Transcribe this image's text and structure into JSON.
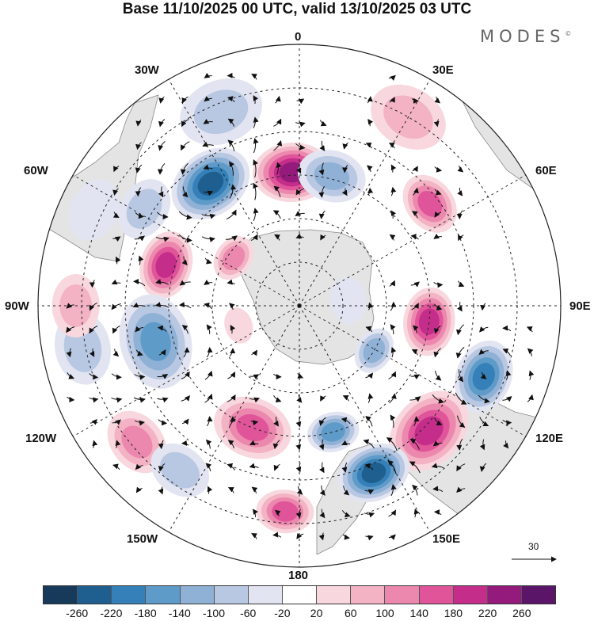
{
  "title": "Base 11/10/2025 00 UTC, valid 13/10/2025 03 UTC",
  "brand": "MODES",
  "brand_mark": "©",
  "longitude_labels": {
    "lon_0": "0",
    "lon_30e": "30E",
    "lon_60e": "60E",
    "lon_90e": "90E",
    "lon_120e": "120E",
    "lon_150e": "150E",
    "lon_180": "180",
    "lon_150w": "150W",
    "lon_120w": "120W",
    "lon_90w": "90W",
    "lon_60w": "60W",
    "lon_30w": "30W"
  },
  "vector_scale_label": "30",
  "colorbar": {
    "colors": [
      "#183a5a",
      "#1f5f8f",
      "#3580b8",
      "#5f9bc9",
      "#8fb1d6",
      "#b9c8e2",
      "#e2e5f1",
      "#ffffff",
      "#f8d8de",
      "#f3b3c4",
      "#ec88ad",
      "#e0559a",
      "#c42d8a",
      "#941b7c",
      "#5a1468"
    ],
    "ticks": [
      "-260",
      "-220",
      "-180",
      "-140",
      "-100",
      "-60",
      "-20",
      "20",
      "60",
      "100",
      "140",
      "180",
      "220",
      "260"
    ]
  },
  "anomaly_field": [
    {
      "id": "h1",
      "lon": -3,
      "colat": 46,
      "value": 220,
      "spread": 13
    },
    {
      "id": "l1",
      "lon": -36,
      "colat": 52,
      "value": -250,
      "spread": 14
    },
    {
      "id": "l2",
      "lon": 14,
      "colat": 46,
      "value": -110,
      "spread": 11
    },
    {
      "id": "h2",
      "lon": 52,
      "colat": 57,
      "value": 150,
      "spread": 10
    },
    {
      "id": "h3",
      "lon": -73,
      "colat": 48,
      "value": 190,
      "spread": 11
    },
    {
      "id": "h4",
      "lon": -54,
      "colat": 28,
      "value": 120,
      "spread": 7
    },
    {
      "id": "l3",
      "lon": -58,
      "colat": 63,
      "value": -90,
      "spread": 10
    },
    {
      "id": "l4",
      "lon": -22,
      "colat": 72,
      "value": -60,
      "spread": 14
    },
    {
      "id": "h5",
      "lon": 97,
      "colat": 45,
      "value": 180,
      "spread": 11
    },
    {
      "id": "l5",
      "lon": 111,
      "colat": 68,
      "value": -190,
      "spread": 12
    },
    {
      "id": "l6",
      "lon": 121,
      "colat": 30,
      "value": -120,
      "spread": 7
    },
    {
      "id": "h6",
      "lon": 134,
      "colat": 62,
      "value": 200,
      "spread": 15
    },
    {
      "id": "l7",
      "lon": 156,
      "colat": 63,
      "value": -230,
      "spread": 12
    },
    {
      "id": "l7b",
      "lon": 165,
      "colat": 45,
      "value": -150,
      "spread": 8
    },
    {
      "id": "h7",
      "lon": -159,
      "colat": 45,
      "value": 150,
      "spread": 13
    },
    {
      "id": "h8",
      "lon": -130,
      "colat": 73,
      "value": 110,
      "spread": 11
    },
    {
      "id": "l8",
      "lon": -144,
      "colat": 70,
      "value": -70,
      "spread": 10
    },
    {
      "id": "l9",
      "lon": -104,
      "colat": 51,
      "value": -140,
      "spread": 16
    },
    {
      "id": "l10",
      "lon": -101,
      "colat": 76,
      "value": -90,
      "spread": 12
    },
    {
      "id": "h9",
      "lon": -90,
      "colat": 77,
      "value": 90,
      "spread": 10
    },
    {
      "id": "h10",
      "lon": -108,
      "colat": 22,
      "value": 40,
      "spread": 5
    },
    {
      "id": "h11",
      "lon": -176,
      "colat": 71,
      "value": 140,
      "spread": 9
    },
    {
      "id": "l11",
      "lon": 84,
      "colat": 17,
      "value": -20,
      "spread": 7
    },
    {
      "id": "h12",
      "lon": 30,
      "colat": 75,
      "value": 60,
      "spread": 13
    },
    {
      "id": "l12",
      "lon": -65,
      "colat": 78,
      "value": -30,
      "spread": 10
    }
  ]
}
